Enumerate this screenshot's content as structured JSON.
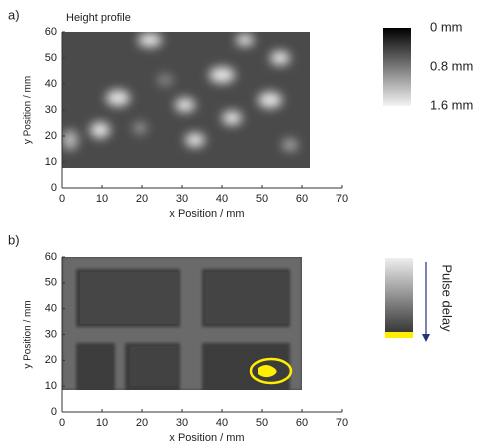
{
  "chart_data": [
    {
      "type": "heatmap",
      "panel_label": "a)",
      "title": "Height profile",
      "xlabel": "x Position / mm",
      "ylabel": "y Position / mm",
      "xlim": [
        0,
        70
      ],
      "xticks": [
        0,
        10,
        20,
        30,
        40,
        50,
        60,
        70
      ],
      "ylim": [
        0,
        60
      ],
      "yticks": [
        0,
        10,
        20,
        30,
        40,
        50,
        60
      ],
      "clim": [
        0,
        1.6
      ],
      "colorbar_ticks": [
        {
          "value": 0,
          "label": "0 mm"
        },
        {
          "value": 0.8,
          "label": "0.8 mm"
        },
        {
          "value": 1.6,
          "label": "1.6 mm"
        }
      ]
    },
    {
      "type": "heatmap",
      "panel_label": "b)",
      "xlabel": "x Position / mm",
      "ylabel": "y Position / mm",
      "xlim": [
        0,
        70
      ],
      "xticks": [
        0,
        10,
        20,
        30,
        40,
        50,
        60,
        70
      ],
      "ylim": [
        0,
        60
      ],
      "yticks": [
        0,
        10,
        20,
        30,
        40,
        50,
        60
      ],
      "colorbar_label": "Pulse delay"
    }
  ]
}
